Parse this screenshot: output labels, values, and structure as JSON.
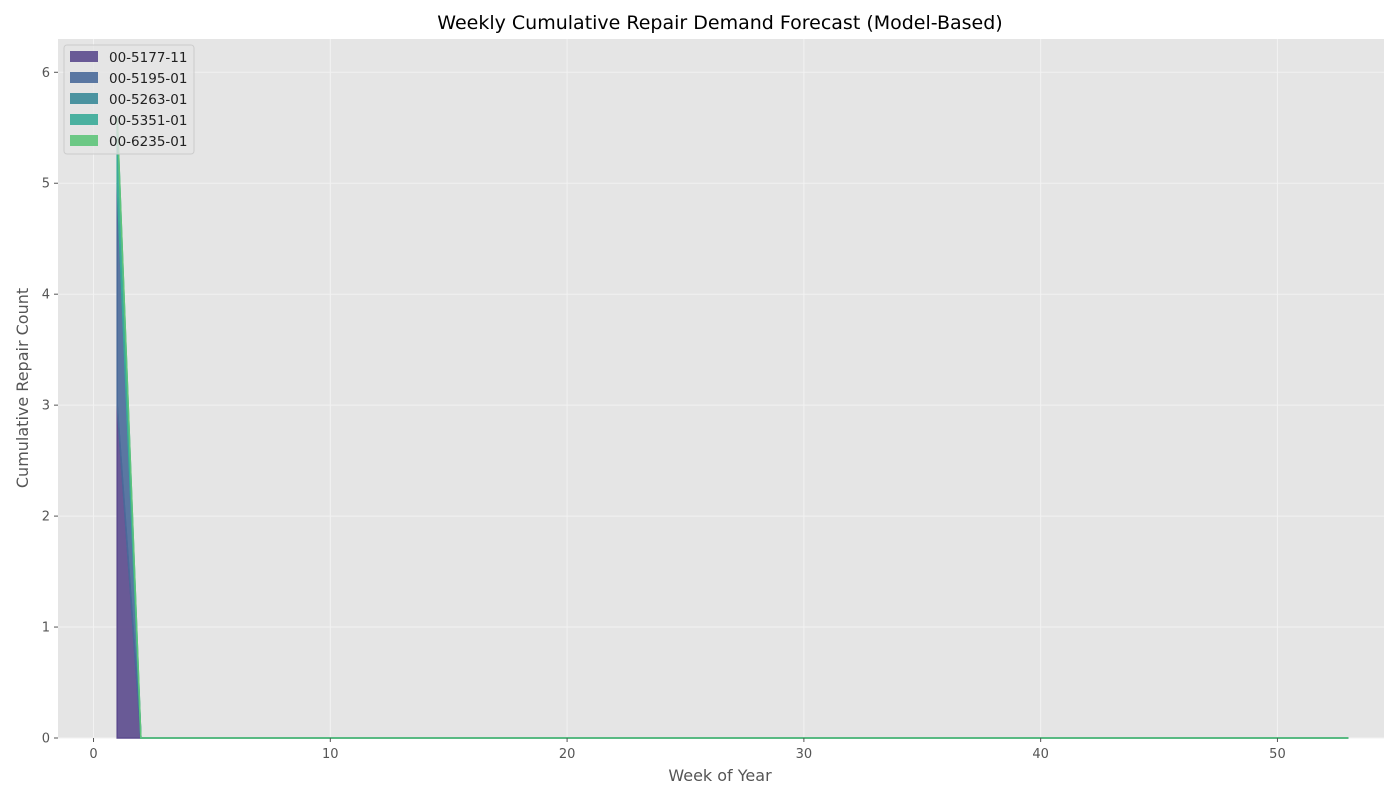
{
  "chart_data": {
    "type": "area",
    "stacked": true,
    "title": "Weekly Cumulative Repair Demand Forecast (Model-Based)",
    "xlabel": "Week of Year",
    "ylabel": "Cumulative Repair Count",
    "xlim": [
      -1.5,
      54.5
    ],
    "ylim": [
      0,
      6.3
    ],
    "x_ticks": [
      0,
      10,
      20,
      30,
      40,
      50
    ],
    "y_ticks": [
      0,
      1,
      2,
      3,
      4,
      5,
      6
    ],
    "grid": true,
    "legend_position": "top-left",
    "x": [
      1,
      2,
      3,
      4,
      5,
      6,
      7,
      8,
      9,
      10,
      11,
      12,
      13,
      14,
      15,
      16,
      17,
      18,
      19,
      20,
      21,
      22,
      23,
      24,
      25,
      26,
      27,
      28,
      29,
      30,
      31,
      32,
      33,
      34,
      35,
      36,
      37,
      38,
      39,
      40,
      41,
      42,
      43,
      44,
      45,
      46,
      47,
      48,
      49,
      50,
      51,
      52,
      53
    ],
    "series": [
      {
        "name": "00-5177-11",
        "color": "#5b4a8d",
        "values": [
          3,
          0,
          0,
          0,
          0,
          0,
          0,
          0,
          0,
          0,
          0,
          0,
          0,
          0,
          0,
          0,
          0,
          0,
          0,
          0,
          0,
          0,
          0,
          0,
          0,
          0,
          0,
          0,
          0,
          0,
          0,
          0,
          0,
          0,
          0,
          0,
          0,
          0,
          0,
          0,
          0,
          0,
          0,
          0,
          0,
          0,
          0,
          0,
          0,
          0,
          0,
          0,
          0
        ]
      },
      {
        "name": "00-5195-01",
        "color": "#4a6a9a",
        "values": [
          2,
          0,
          0,
          0,
          0,
          0,
          0,
          0,
          0,
          0,
          0,
          0,
          0,
          0,
          0,
          0,
          0,
          0,
          0,
          0,
          0,
          0,
          0,
          0,
          0,
          0,
          0,
          0,
          0,
          0,
          0,
          0,
          0,
          0,
          0,
          0,
          0,
          0,
          0,
          0,
          0,
          0,
          0,
          0,
          0,
          0,
          0,
          0,
          0,
          0,
          0,
          0,
          0
        ]
      },
      {
        "name": "00-5263-01",
        "color": "#3a8a98",
        "values": [
          0,
          0,
          0,
          0,
          0,
          0,
          0,
          0,
          0,
          0,
          0,
          0,
          0,
          0,
          0,
          0,
          0,
          0,
          0,
          0,
          0,
          0,
          0,
          0,
          0,
          0,
          0,
          0,
          0,
          0,
          0,
          0,
          0,
          0,
          0,
          0,
          0,
          0,
          0,
          0,
          0,
          0,
          0,
          0,
          0,
          0,
          0,
          0,
          0,
          0,
          0,
          0,
          0
        ]
      },
      {
        "name": "00-5351-01",
        "color": "#3aab98",
        "values": [
          0.6,
          0,
          0,
          0,
          0,
          0,
          0,
          0,
          0,
          0,
          0,
          0,
          0,
          0,
          0,
          0,
          0,
          0,
          0,
          0,
          0,
          0,
          0,
          0,
          0,
          0,
          0,
          0,
          0,
          0,
          0,
          0,
          0,
          0,
          0,
          0,
          0,
          0,
          0,
          0,
          0,
          0,
          0,
          0,
          0,
          0,
          0,
          0,
          0,
          0,
          0,
          0,
          0
        ]
      },
      {
        "name": "00-6235-01",
        "color": "#5ec47a",
        "values": [
          0,
          0,
          0,
          0,
          0,
          0,
          0,
          0,
          0,
          0,
          0,
          0,
          0,
          0,
          0,
          0,
          0,
          0,
          0,
          0,
          0,
          0,
          0,
          0,
          0,
          0,
          0,
          0,
          0,
          0,
          0,
          0,
          0,
          0,
          0,
          0,
          0,
          0,
          0,
          0,
          0,
          0,
          0,
          0,
          0,
          0,
          0,
          0,
          0,
          0,
          0,
          0,
          0
        ]
      }
    ]
  }
}
